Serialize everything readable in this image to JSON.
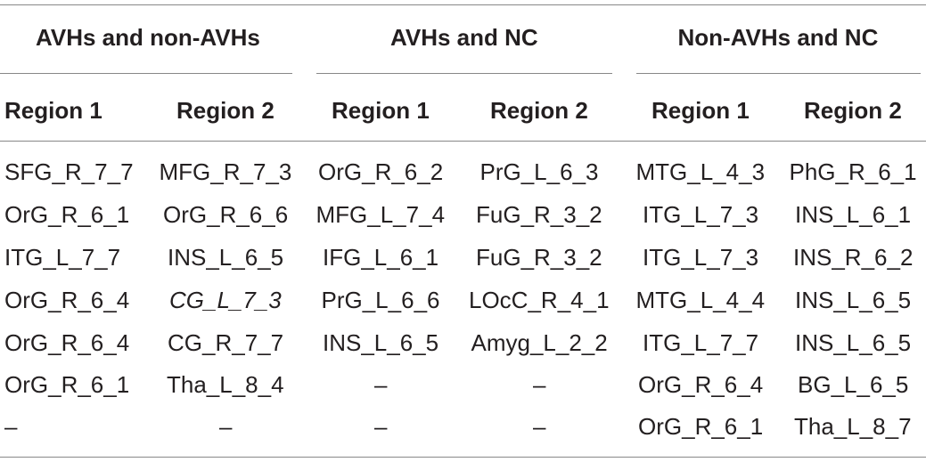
{
  "table": {
    "groups": [
      "AVHs and non-AVHs",
      "AVHs and NC",
      "Non-AVHs and NC"
    ],
    "columns": [
      "Region 1",
      "Region 2",
      "Region 1",
      "Region 2",
      "Region 1",
      "Region 2"
    ],
    "rows": [
      [
        "SFG_R_7_7",
        "MFG_R_7_3",
        "OrG_R_6_2",
        "PrG_L_6_3",
        "MTG_L_4_3",
        "PhG_R_6_1"
      ],
      [
        "OrG_R_6_1",
        "OrG_R_6_6",
        "MFG_L_7_4",
        "FuG_R_3_2",
        "ITG_L_7_3",
        "INS_L_6_1"
      ],
      [
        "ITG_L_7_7",
        "INS_L_6_5",
        "IFG_L_6_1",
        "FuG_R_3_2",
        "ITG_L_7_3",
        "INS_R_6_2"
      ],
      [
        "OrG_R_6_4",
        "CG_L_7_3",
        "PrG_L_6_6",
        "LOcC_R_4_1",
        "MTG_L_4_4",
        "INS_L_6_5"
      ],
      [
        "OrG_R_6_4",
        "CG_R_7_7",
        "INS_L_6_5",
        "Amyg_L_2_2",
        "ITG_L_7_7",
        "INS_L_6_5"
      ],
      [
        "OrG_R_6_1",
        "Tha_L_8_4",
        "–",
        "–",
        "OrG_R_6_4",
        "BG_L_6_5"
      ],
      [
        "–",
        "–",
        "–",
        "–",
        "OrG_R_6_1",
        "Tha_L_8_7"
      ]
    ]
  }
}
